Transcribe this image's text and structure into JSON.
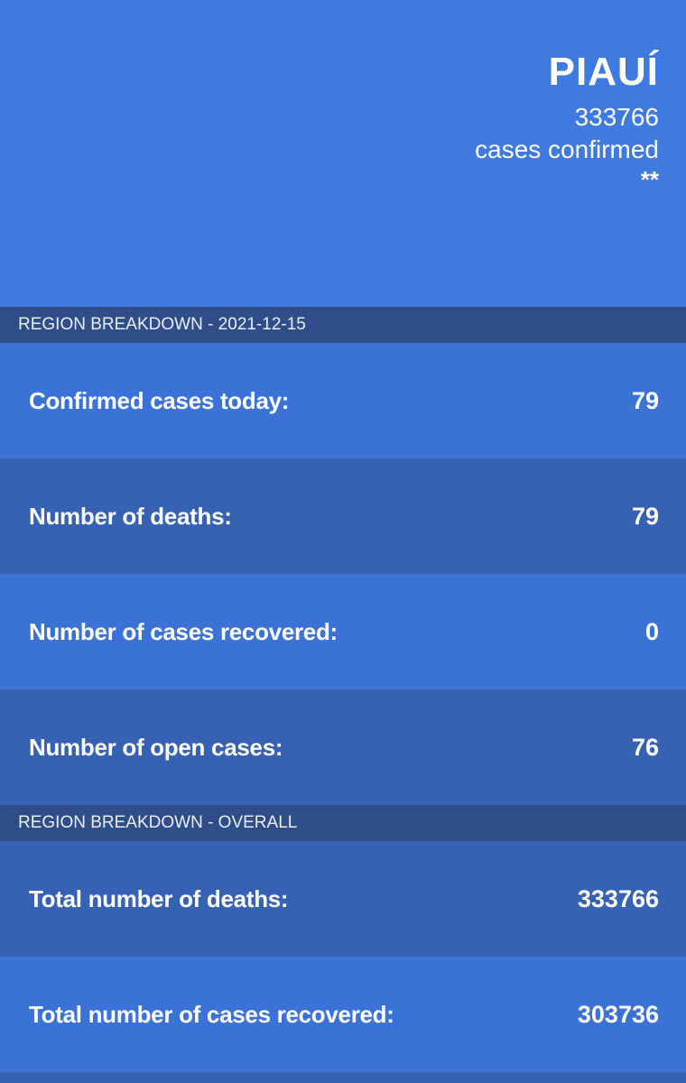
{
  "header": {
    "region_name": "PIAUÍ",
    "total_cases": "333766",
    "caption": "cases confirmed",
    "note": "**"
  },
  "daily": {
    "title": "REGION BREAKDOWN - 2021-12-15",
    "rows": [
      {
        "label": "Confirmed cases today:",
        "value": "79"
      },
      {
        "label": "Number of deaths:",
        "value": "79"
      },
      {
        "label": "Number of cases recovered:",
        "value": "0"
      },
      {
        "label": "Number of open cases:",
        "value": "76"
      }
    ]
  },
  "overall": {
    "title": "REGION BREAKDOWN - OVERALL",
    "rows": [
      {
        "label": "Total number of deaths:",
        "value": "333766"
      },
      {
        "label": "Total number of cases recovered:",
        "value": "303736"
      }
    ]
  },
  "colors": {
    "hero_bg": "#3f7ae0",
    "section_header_bg": "#2f4d89",
    "row_light": "#3b72d6",
    "row_dark": "#3762b4"
  }
}
